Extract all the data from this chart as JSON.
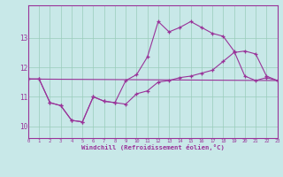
{
  "background_color": "#c8e8e8",
  "grid_color": "#99ccbb",
  "line_color": "#993399",
  "xlabel": "Windchill (Refroidissement éolien,°C)",
  "xlim": [
    0,
    23
  ],
  "ylim": [
    9.6,
    14.1
  ],
  "yticks": [
    10,
    11,
    12,
    13
  ],
  "xticks": [
    0,
    1,
    2,
    3,
    4,
    5,
    6,
    7,
    8,
    9,
    10,
    11,
    12,
    13,
    14,
    15,
    16,
    17,
    18,
    19,
    20,
    21,
    22,
    23
  ],
  "s1x": [
    0,
    1,
    2,
    3,
    4,
    5,
    6,
    7,
    8,
    9,
    10,
    11,
    12,
    13,
    14,
    15,
    16,
    17,
    18,
    19,
    20,
    21,
    22,
    23
  ],
  "s1y": [
    11.6,
    11.6,
    10.8,
    10.7,
    10.2,
    10.15,
    11.0,
    10.85,
    10.8,
    11.55,
    11.75,
    12.35,
    13.55,
    13.2,
    13.35,
    13.55,
    13.35,
    13.15,
    13.05,
    12.55,
    11.7,
    11.55,
    11.65,
    11.55
  ],
  "s2x": [
    0,
    1,
    2,
    3,
    4,
    5,
    6,
    7,
    8,
    9,
    10,
    11,
    12,
    13,
    14,
    15,
    16,
    17,
    18,
    19,
    20,
    21,
    22,
    23
  ],
  "s2y": [
    11.6,
    11.6,
    10.8,
    10.7,
    10.2,
    10.15,
    11.0,
    10.85,
    10.8,
    10.75,
    11.1,
    11.2,
    11.5,
    11.55,
    11.65,
    11.7,
    11.8,
    11.9,
    12.2,
    12.5,
    12.55,
    12.45,
    11.7,
    11.55
  ],
  "s3x": [
    0,
    23
  ],
  "s3y": [
    11.6,
    11.55
  ]
}
